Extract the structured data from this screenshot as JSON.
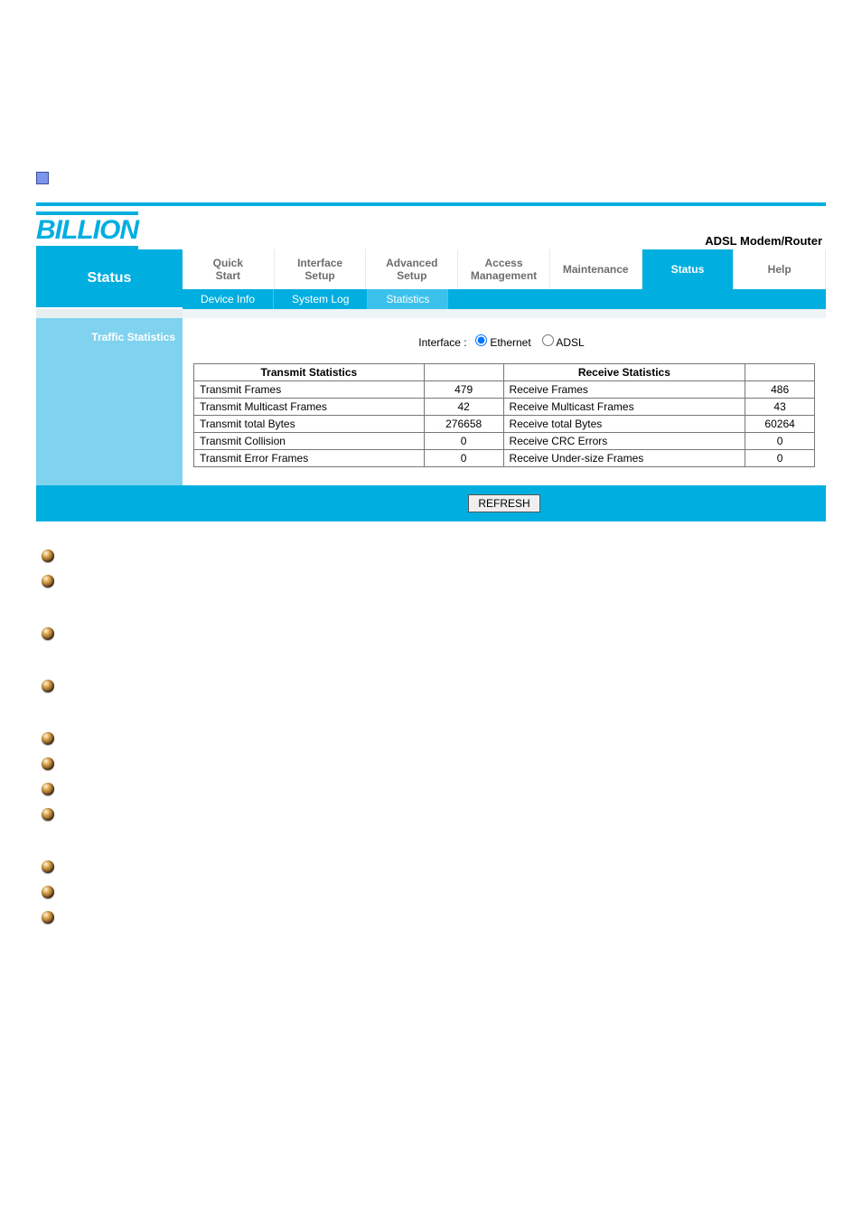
{
  "brand": "BILLION",
  "device_type": "ADSL Modem/Router",
  "sidebar": {
    "title": "Status",
    "section": "Traffic Statistics"
  },
  "tabs": {
    "primary": [
      {
        "label": "Quick\nStart"
      },
      {
        "label": "Interface\nSetup"
      },
      {
        "label": "Advanced\nSetup"
      },
      {
        "label": "Access\nManagement"
      },
      {
        "label": "Maintenance"
      },
      {
        "label": "Status",
        "active": true
      },
      {
        "label": "Help"
      }
    ],
    "secondary": [
      {
        "label": "Device Info"
      },
      {
        "label": "System Log"
      },
      {
        "label": "Statistics",
        "active": true
      }
    ]
  },
  "interface": {
    "label": "Interface :",
    "options": [
      "Ethernet",
      "ADSL"
    ],
    "selected": "Ethernet"
  },
  "stats": {
    "headers": {
      "tx": "Transmit Statistics",
      "rx": "Receive Statistics"
    },
    "rows": [
      {
        "tx_label": "Transmit Frames",
        "tx_val": "479",
        "rx_label": "Receive Frames",
        "rx_val": "486"
      },
      {
        "tx_label": "Transmit Multicast Frames",
        "tx_val": "42",
        "rx_label": "Receive Multicast Frames",
        "rx_val": "43"
      },
      {
        "tx_label": "Transmit total Bytes",
        "tx_val": "276658",
        "rx_label": "Receive total Bytes",
        "rx_val": "60264"
      },
      {
        "tx_label": "Transmit Collision",
        "tx_val": "0",
        "rx_label": "Receive CRC Errors",
        "rx_val": "0"
      },
      {
        "tx_label": "Transmit Error Frames",
        "tx_val": "0",
        "rx_label": "Receive Under-size Frames",
        "rx_val": "0"
      }
    ]
  },
  "refresh_label": "REFRESH",
  "colors": {
    "brand": "#00aee0",
    "sidebar_light": "#7fd3ef",
    "text_muted": "#6d6d6d"
  },
  "notes_layout": [
    "b",
    "b",
    "g",
    "b",
    "g",
    "b",
    "g",
    "b",
    "b",
    "b",
    "b",
    "g",
    "b",
    "b",
    "b"
  ]
}
